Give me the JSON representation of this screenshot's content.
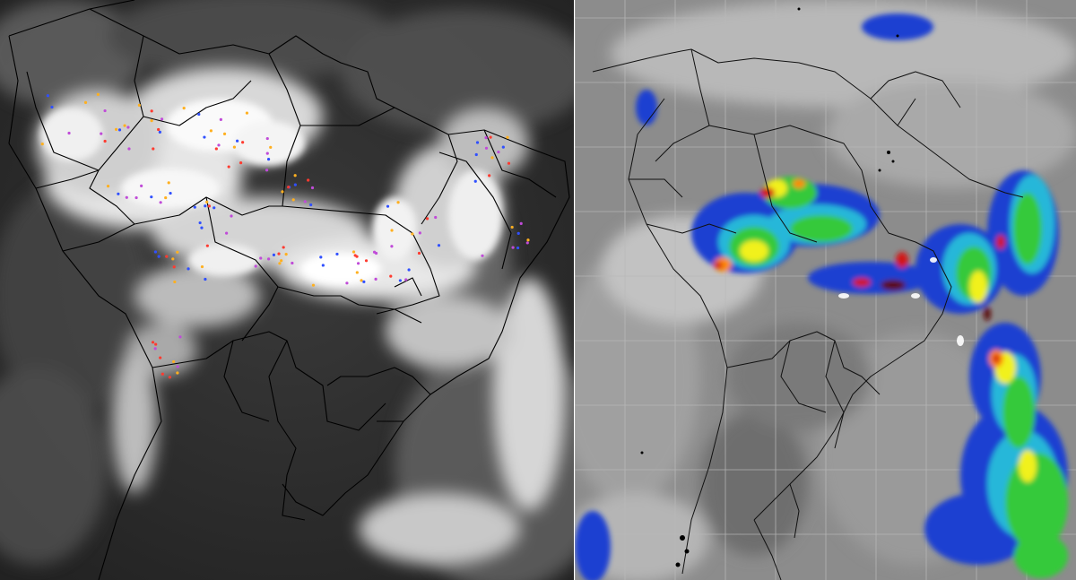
{
  "image": {
    "description_panels": [
      "left-ir-lightning-map",
      "right-enhanced-ir-map"
    ]
  },
  "left_panel": {
    "icon": "satellite-ir-grayscale-map",
    "lightning_colors": [
      "#ff3b30",
      "#c04bd8",
      "#ffb020",
      "#3050ff"
    ],
    "cloud_color": "#f2f2f2",
    "background_color": "#2b2b2b",
    "border_color": "#000000"
  },
  "right_panel": {
    "icon": "satellite-enhanced-ir-map",
    "enhancement_colors": [
      "#1a3fd1",
      "#25b7d9",
      "#35c93a",
      "#f1f11d",
      "#ff8a00",
      "#d21414",
      "#5a0a0a"
    ],
    "grid_color": "#b9b9b9",
    "background_color": "#8a8a8a",
    "border_color": "#111111"
  }
}
